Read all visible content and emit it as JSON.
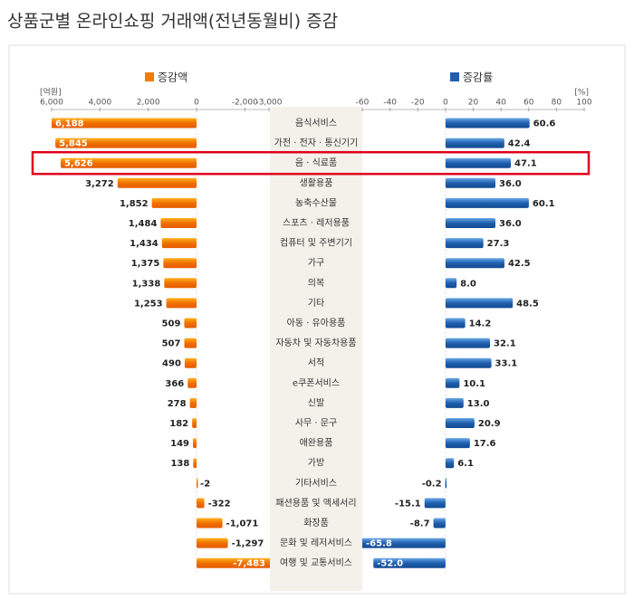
{
  "chart_data": {
    "type": "bar",
    "orientation": "horizontal",
    "title": "상품군별 온라인쇼핑 거래액(전년동월비) 증감",
    "categories": [
      "음식서비스",
      "가전 · 전자 · 통신기기",
      "음 · 식료품",
      "생활용품",
      "농축수산물",
      "스포츠 · 레저용품",
      "컴퓨터 및 주변기기",
      "가구",
      "의복",
      "기타",
      "아동 · 유아용품",
      "자동차 및 자동차용품",
      "서적",
      "e쿠폰서비스",
      "신발",
      "사무 · 문구",
      "애완용품",
      "가방",
      "기타서비스",
      "패션용품 및 액세서리",
      "화장품",
      "문화 및 레저서비스",
      "여행 및 교통서비스"
    ],
    "series": [
      {
        "name": "증감액",
        "color": "#ef7d00",
        "axis": "x",
        "values": [
          6188,
          5845,
          5626,
          3272,
          1852,
          1484,
          1434,
          1375,
          1338,
          1253,
          509,
          507,
          490,
          366,
          278,
          182,
          149,
          138,
          -2,
          -322,
          -1071,
          -1297,
          -7483
        ],
        "value_labels": [
          "6,188",
          "5,845",
          "5,626",
          "3,272",
          "1,852",
          "1,484",
          "1,434",
          "1,375",
          "1,338",
          "1,253",
          "509",
          "507",
          "490",
          "366",
          "278",
          "182",
          "149",
          "138",
          "-2",
          "-322",
          "-1,071",
          "-1,297",
          "-7,483"
        ]
      },
      {
        "name": "증감률",
        "color": "#1f5fae",
        "axis": "x2",
        "values": [
          60.6,
          42.4,
          47.1,
          36.0,
          60.1,
          36.0,
          27.3,
          42.5,
          8.0,
          48.5,
          14.2,
          32.1,
          33.1,
          10.1,
          13.0,
          20.9,
          17.6,
          6.1,
          -0.2,
          -15.1,
          -8.7,
          -65.8,
          -52.0
        ],
        "value_labels": [
          "60.6",
          "42.4",
          "47.1",
          "36.0",
          "60.1",
          "36.0",
          "27.3",
          "42.5",
          "8.0",
          "48.5",
          "14.2",
          "32.1",
          "33.1",
          "10.1",
          "13.0",
          "20.9",
          "17.6",
          "6.1",
          "-0.2",
          "-15.1",
          "-8.7",
          "-65.8",
          "-52.0"
        ]
      }
    ],
    "xlabel": "[억원]",
    "xlim": [
      6000,
      -3000
    ],
    "xticks": [
      {
        "value": 6000,
        "label": "6,000"
      },
      {
        "value": 4000,
        "label": "4,000"
      },
      {
        "value": 2000,
        "label": "2,000"
      },
      0,
      {
        "value": -2000,
        "label": "-2,000"
      },
      {
        "value": -3000,
        "label": "-3,000"
      }
    ],
    "x2label": "[%]",
    "x2lim": [
      -60,
      100
    ],
    "x2ticks": [
      -60,
      -40,
      -20,
      0,
      20,
      40,
      60,
      80,
      100
    ],
    "highlight": 2
  }
}
